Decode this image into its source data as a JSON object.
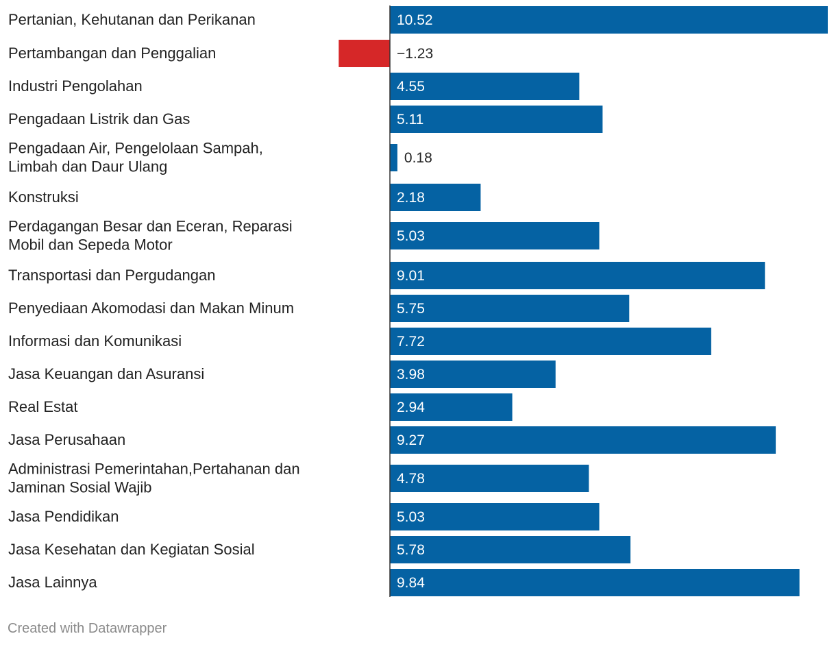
{
  "chart_data": {
    "type": "bar",
    "orientation": "horizontal",
    "categories": [
      [
        "Pertanian, Kehutanan dan Perikanan"
      ],
      [
        "Pertambangan dan Penggalian"
      ],
      [
        "Industri Pengolahan"
      ],
      [
        "Pengadaan Listrik dan Gas"
      ],
      [
        "Pengadaan Air, Pengelolaan Sampah,",
        "Limbah dan Daur Ulang"
      ],
      [
        "Konstruksi"
      ],
      [
        "Perdagangan Besar dan Eceran, Reparasi",
        "Mobil dan Sepeda Motor"
      ],
      [
        "Transportasi dan Pergudangan"
      ],
      [
        "Penyediaan Akomodasi dan Makan Minum"
      ],
      [
        "Informasi dan Komunikasi"
      ],
      [
        "Jasa Keuangan dan Asuransi"
      ],
      [
        "Real Estat"
      ],
      [
        "Jasa Perusahaan"
      ],
      [
        "Administrasi Pemerintahan,Pertahanan dan",
        "Jaminan Sosial Wajib"
      ],
      [
        "Jasa Pendidikan"
      ],
      [
        "Jasa Kesehatan dan Kegiatan Sosial"
      ],
      [
        "Jasa Lainnya"
      ]
    ],
    "values": [
      10.52,
      -1.23,
      4.55,
      5.11,
      0.18,
      2.18,
      5.03,
      9.01,
      5.75,
      7.72,
      3.98,
      2.94,
      9.27,
      4.78,
      5.03,
      5.78,
      9.84
    ],
    "value_labels": [
      "10.52",
      "−1.23",
      "4.55",
      "5.11",
      "0.18",
      "2.18",
      "5.03",
      "9.01",
      "5.75",
      "7.72",
      "3.98",
      "2.94",
      "9.27",
      "4.78",
      "5.03",
      "5.78",
      "9.84"
    ],
    "colors": {
      "positive": "#0562a3",
      "negative": "#d62728",
      "axis": "#333333"
    },
    "title": "",
    "xlabel": "",
    "ylabel": "",
    "xlim": [
      -1.23,
      10.52
    ],
    "grid": false
  },
  "footer": {
    "credit": "Created with Datawrapper"
  }
}
